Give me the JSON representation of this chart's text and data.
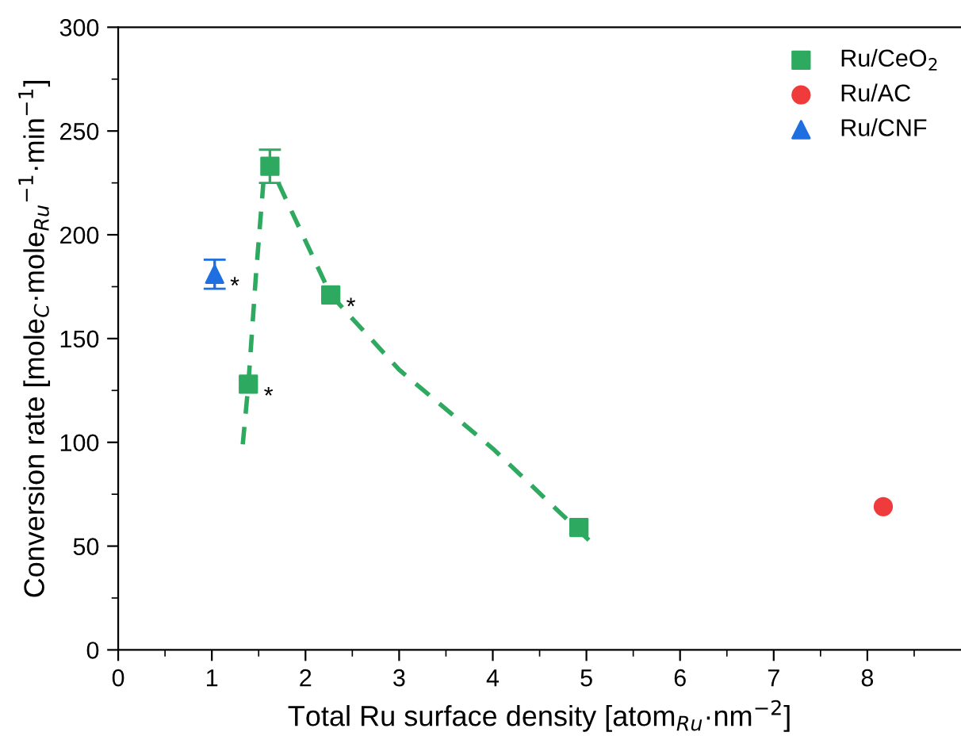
{
  "chart_data": {
    "type": "scatter",
    "xlabel": "Total Ru surface density [atom$_{Ru}$·nm$^{−2}$]",
    "ylabel": "Conversion rate [mole$_{C}$·mole$_{Ru}$$^{−1}$·min$^{−1}$]",
    "xlim": [
      0,
      9
    ],
    "ylim": [
      0,
      300
    ],
    "xticks": [
      0,
      {
        "value": 0.5,
        "label": null
      },
      1,
      {
        "value": 1.5,
        "label": null
      },
      2,
      {
        "value": 2.5,
        "label": null
      },
      3,
      {
        "value": 3.5,
        "label": null
      },
      4,
      {
        "value": 4.5,
        "label": null
      },
      5,
      {
        "value": 5.5,
        "label": null
      },
      6,
      {
        "value": 6.5,
        "label": null
      },
      7,
      {
        "value": 7.5,
        "label": null
      },
      8,
      {
        "value": 8.5,
        "label": null
      }
    ],
    "yticks": [
      0,
      {
        "value": 25,
        "label": null
      },
      50,
      {
        "value": 75,
        "label": null
      },
      100,
      {
        "value": 125,
        "label": null
      },
      150,
      {
        "value": 175,
        "label": null
      },
      200,
      {
        "value": 225,
        "label": null
      },
      250,
      {
        "value": 275,
        "label": null
      },
      300
    ],
    "grid": false,
    "legend": "top right",
    "series": [
      {
        "name": "Ru/CeO$_{2}$",
        "color": "#2eaa60",
        "marker": "square",
        "x": [
          1.39,
          1.62,
          2.27,
          4.92
        ],
        "values": [
          128,
          233,
          171,
          59
        ],
        "errors": [
          null,
          8,
          null,
          null
        ]
      },
      {
        "name": "Ru/AC",
        "color": "#ef3b3b",
        "marker": "circle",
        "x": [
          8.17
        ],
        "values": [
          69
        ]
      },
      {
        "name": "Ru/CNF",
        "color": "#1f6fe0",
        "marker": "triangle",
        "x": [
          1.03
        ],
        "values": [
          181
        ],
        "errors": [
          7
        ]
      },
      {
        "type": "line",
        "color": "#2eaa60",
        "line_style": "dashed",
        "marker": "none",
        "x": [
          1.33,
          1.39,
          1.47,
          1.55
        ],
        "values": [
          99,
          128,
          180,
          225
        ]
      },
      {
        "type": "line",
        "color": "#2eaa60",
        "line_style": "dashed",
        "marker": "none",
        "x": [
          1.71,
          2.27,
          3,
          4,
          5.07
        ],
        "values": [
          225,
          171,
          135,
          97,
          51
        ]
      }
    ],
    "annotations": [
      {
        "text": "*",
        "x": 1.03,
        "y": 181
      },
      {
        "text": "*",
        "x": 1.39,
        "y": 128
      },
      {
        "text": "*",
        "x": 2.27,
        "y": 171
      }
    ]
  }
}
